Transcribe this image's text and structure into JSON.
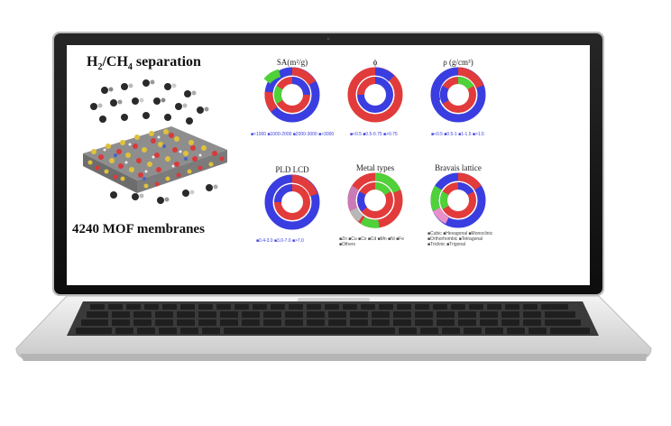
{
  "screen": {
    "left_panel": {
      "title_prefix": "H",
      "title_sub1": "2",
      "title_mid": "/CH",
      "title_sub2": "4",
      "title_suffix": " separation",
      "label": "4240 MOF membranes"
    },
    "charts": [
      {
        "title": "SA(m²/g)",
        "legend": "■<1000  ■1000-2000  ■2000-3000  ■>3000"
      },
      {
        "title": "ϕ",
        "legend": "■<0.5  ■0.5-0.75  ■>0.75"
      },
      {
        "title": "ρ (g/cm³)",
        "legend": "■<0.5  ■0.5-1  ■1-1.5  ■>1.5"
      },
      {
        "title": "PLD LCD",
        "legend": "■0.4-3.0  ■3.0-7.0  ■>7.0"
      },
      {
        "title": "Metal types",
        "legend": "■Zn ■Cu ■Co ■Cd ■Mn ■Ni ■Fe ■Others"
      },
      {
        "title": "Bravais lattice",
        "legend": "■Cubic ■Hexagonal ■Monoclinic ■Orthorhombic ■Tetragonal ■Triclinic ■Trigonal"
      }
    ],
    "colors": {
      "red": "#e23b3b",
      "blue": "#3a3ee0",
      "green": "#4fd13a",
      "gray": "#b8b8b8",
      "laptop_body": "#e9e9e9",
      "bezel": "#151515",
      "keyboard": "#2b2b2b"
    }
  }
}
